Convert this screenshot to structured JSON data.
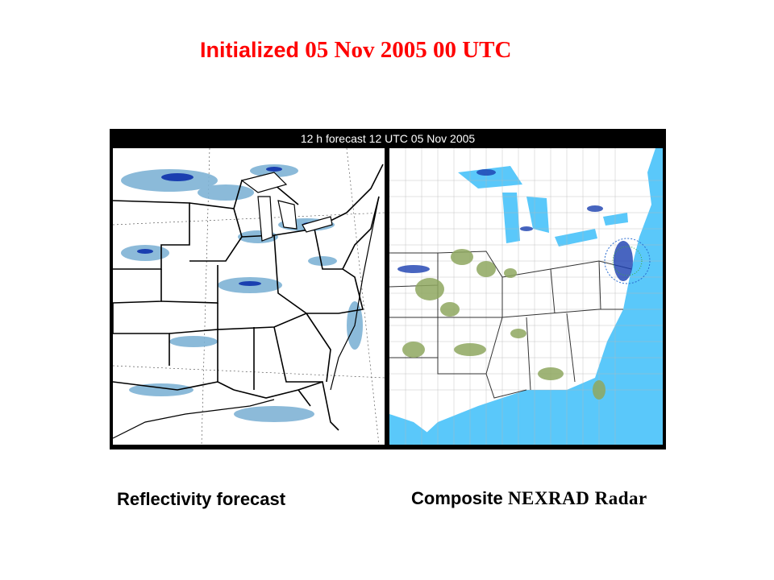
{
  "title": {
    "part1": "Initialized",
    "part2": " 05 Nov 2005 00 UTC"
  },
  "figure": {
    "header": "12 h forecast 12 UTC 05 Nov 2005"
  },
  "captions": {
    "left": "Reflectivity forecast",
    "right_part1": "Composite",
    "right_part2": " NEXRAD Radar"
  },
  "colors": {
    "title": "#ff0000",
    "ocean": "#5ac8fa",
    "echo_light": "#7fb3d5",
    "echo_strong": "#1a3fb0",
    "echo_green": "#8fa860"
  }
}
